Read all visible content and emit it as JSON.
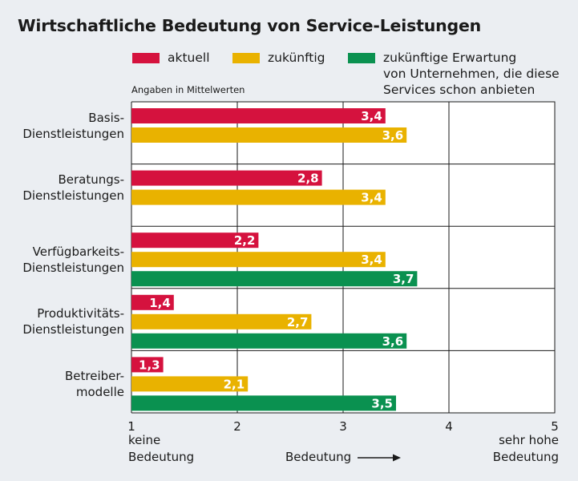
{
  "title": "Wirtschaftliche Bedeutung von Service-Leistungen",
  "note": "Angaben in Mittelwerten",
  "legend": [
    {
      "label": "aktuell",
      "color": "#d5123e"
    },
    {
      "label": "zukünftig",
      "color": "#e9b200"
    },
    {
      "label": "zukünftige Erwartung\nvon Unternehmen, die diese\nServices schon anbieten",
      "color": "#0a9150"
    }
  ],
  "axis": {
    "left_label": "keine\nBedeutung",
    "center_label": "Bedeutung",
    "right_label": "sehr hohe\nBedeutung"
  },
  "chart_data": {
    "type": "bar",
    "orientation": "horizontal",
    "title": "Wirtschaftliche Bedeutung von Service-Leistungen",
    "xlim": [
      1,
      5
    ],
    "xticks": [
      "1",
      "2",
      "3",
      "4",
      "5"
    ],
    "grid": true,
    "legend_position": "top",
    "categories": [
      "Basis-\nDienstleistungen",
      "Beratungs-\nDienstleistungen",
      "Verfügbarkeits-\nDienstleistungen",
      "Produktivitäts-\nDienstleistungen",
      "Betreiber-\nmodelle"
    ],
    "series": [
      {
        "name": "aktuell",
        "color": "#d5123e",
        "values": [
          3.4,
          2.8,
          2.2,
          1.4,
          1.3
        ],
        "labels": [
          "3,4",
          "2,8",
          "2,2",
          "1,4",
          "1,3"
        ]
      },
      {
        "name": "zukünftig",
        "color": "#e9b200",
        "values": [
          3.6,
          3.4,
          3.4,
          2.7,
          2.1
        ],
        "labels": [
          "3,6",
          "3,4",
          "3,4",
          "2,7",
          "2,1"
        ]
      },
      {
        "name": "zukünftige Erwartung von Unternehmen, die diese Services schon anbieten",
        "color": "#0a9150",
        "values": [
          null,
          null,
          3.7,
          3.6,
          3.5
        ],
        "labels": [
          "",
          "",
          "3,7",
          "3,6",
          "3,5"
        ]
      }
    ]
  }
}
